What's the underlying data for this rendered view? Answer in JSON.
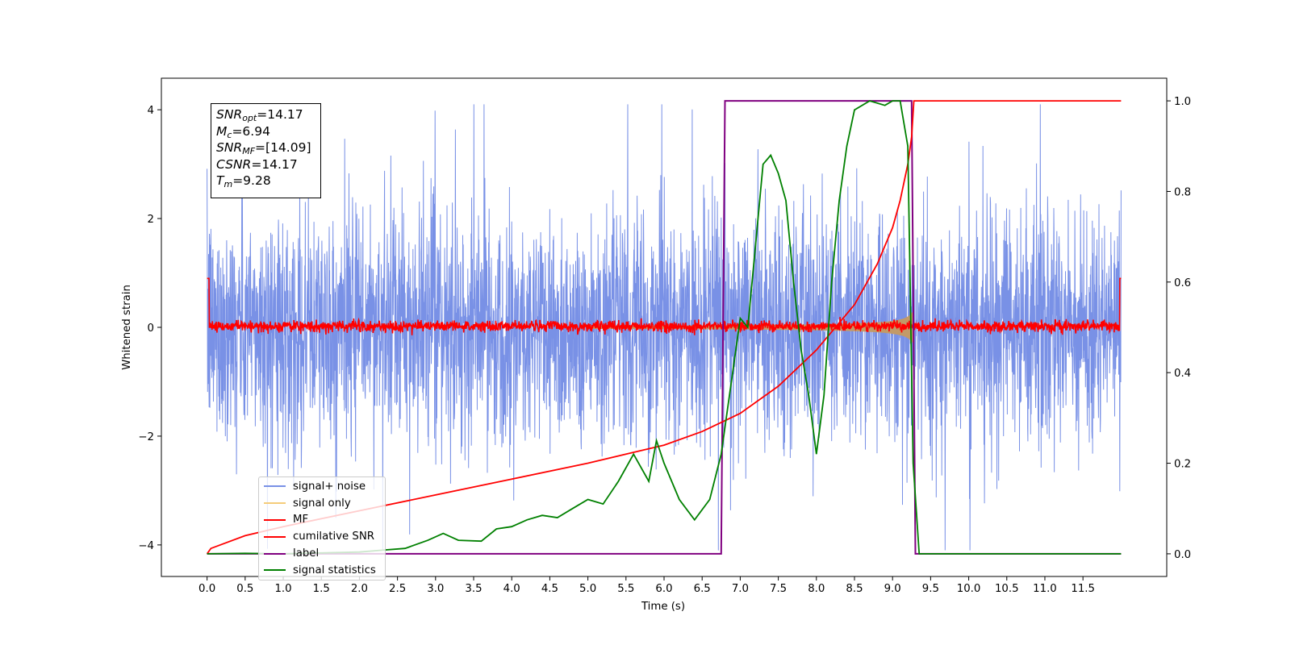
{
  "chart_data": {
    "type": "line",
    "xlabel": "Time (s)",
    "ylabel": "Whitened strain",
    "xlim": [
      -0.6,
      12.6
    ],
    "ylim": [
      -4.58,
      4.58
    ],
    "y2lim": [
      -0.05,
      1.05
    ],
    "x_ticks": [
      "0.0",
      "0.5",
      "1.0",
      "1.5",
      "2.0",
      "2.5",
      "3.0",
      "3.5",
      "4.0",
      "4.5",
      "5.0",
      "5.5",
      "6.0",
      "6.5",
      "7.0",
      "7.5",
      "8.0",
      "8.5",
      "9.0",
      "9.5",
      "10.0",
      "10.5",
      "11.0",
      "11.5"
    ],
    "y_ticks": [
      "4",
      "2",
      "0",
      "−2",
      "−4"
    ],
    "y2_ticks": [
      "1.0",
      "0.8",
      "0.6",
      "0.4",
      "0.2",
      "0.0"
    ],
    "annotation": {
      "snr_opt": {
        "sym": "SNR",
        "sub": "opt",
        "value": "=14.17"
      },
      "mc": {
        "sym": "M",
        "sub": "c",
        "value": "=6.94"
      },
      "snr_mf": {
        "sym": "SNR",
        "sub": "MF",
        "value": "=[14.09]"
      },
      "csnr": {
        "sym": "CSNR",
        "value": "=14.17"
      },
      "tm": {
        "sym": "T",
        "sub": "m",
        "value": "=9.28"
      }
    },
    "legend_position": "lower-left",
    "series": [
      {
        "name": "signal+ noise",
        "color": "#7991e6",
        "axis": "left",
        "description_values": {
          "x_start": 0.0,
          "x_end": 12.0,
          "band": [
            -2.8,
            2.4
          ],
          "peaks": [
            4.1,
            -4.1
          ]
        }
      },
      {
        "name": "signal only",
        "color": "#f5cc7a",
        "axis": "left",
        "description_values": {
          "merger_time": 9.28,
          "peak_amplitude": 1.2
        }
      },
      {
        "name": "MF",
        "color": "#ff0000",
        "axis": "left",
        "description_values": {
          "noise_level": 0.1
        }
      },
      {
        "name": "cumilative SNR",
        "color": "#ff0000",
        "axis": "right",
        "points": [
          [
            0.0,
            0.0
          ],
          [
            0.05,
            0.012
          ],
          [
            0.5,
            0.04
          ],
          [
            1.0,
            0.06
          ],
          [
            2.0,
            0.095
          ],
          [
            3.0,
            0.13
          ],
          [
            4.0,
            0.165
          ],
          [
            5.0,
            0.2
          ],
          [
            5.5,
            0.22
          ],
          [
            6.0,
            0.24
          ],
          [
            6.5,
            0.27
          ],
          [
            7.0,
            0.31
          ],
          [
            7.5,
            0.37
          ],
          [
            8.0,
            0.45
          ],
          [
            8.5,
            0.55
          ],
          [
            8.8,
            0.64
          ],
          [
            9.0,
            0.72
          ],
          [
            9.1,
            0.78
          ],
          [
            9.2,
            0.86
          ],
          [
            9.25,
            0.92
          ],
          [
            9.28,
            1.0
          ],
          [
            12.0,
            1.0
          ]
        ]
      },
      {
        "name": "label",
        "color": "#800080",
        "axis": "right",
        "points": [
          [
            0.0,
            0.0
          ],
          [
            6.75,
            0.0
          ],
          [
            6.8,
            1.0
          ],
          [
            9.25,
            1.0
          ],
          [
            9.3,
            0.0
          ],
          [
            12.0,
            0.0
          ]
        ]
      },
      {
        "name": "signal statistics",
        "color": "#008000",
        "axis": "right",
        "points": [
          [
            0.0,
            0.0
          ],
          [
            0.5,
            0.001
          ],
          [
            1.0,
            0.0
          ],
          [
            1.5,
            0.002
          ],
          [
            2.0,
            0.004
          ],
          [
            2.3,
            0.008
          ],
          [
            2.6,
            0.012
          ],
          [
            2.9,
            0.03
          ],
          [
            3.1,
            0.045
          ],
          [
            3.3,
            0.03
          ],
          [
            3.6,
            0.028
          ],
          [
            3.8,
            0.055
          ],
          [
            4.0,
            0.06
          ],
          [
            4.2,
            0.075
          ],
          [
            4.4,
            0.085
          ],
          [
            4.6,
            0.08
          ],
          [
            4.8,
            0.1
          ],
          [
            5.0,
            0.12
          ],
          [
            5.2,
            0.11
          ],
          [
            5.4,
            0.16
          ],
          [
            5.6,
            0.22
          ],
          [
            5.8,
            0.16
          ],
          [
            5.9,
            0.25
          ],
          [
            6.0,
            0.2
          ],
          [
            6.2,
            0.12
          ],
          [
            6.4,
            0.075
          ],
          [
            6.6,
            0.12
          ],
          [
            6.75,
            0.22
          ],
          [
            6.9,
            0.4
          ],
          [
            7.0,
            0.52
          ],
          [
            7.1,
            0.5
          ],
          [
            7.2,
            0.68
          ],
          [
            7.3,
            0.86
          ],
          [
            7.4,
            0.88
          ],
          [
            7.5,
            0.84
          ],
          [
            7.6,
            0.78
          ],
          [
            7.7,
            0.6
          ],
          [
            7.8,
            0.45
          ],
          [
            7.9,
            0.35
          ],
          [
            8.0,
            0.22
          ],
          [
            8.1,
            0.35
          ],
          [
            8.2,
            0.6
          ],
          [
            8.3,
            0.78
          ],
          [
            8.4,
            0.9
          ],
          [
            8.5,
            0.98
          ],
          [
            8.7,
            1.0
          ],
          [
            8.9,
            0.99
          ],
          [
            9.0,
            1.0
          ],
          [
            9.1,
            1.0
          ],
          [
            9.2,
            0.9
          ],
          [
            9.27,
            0.2
          ],
          [
            9.35,
            0.0
          ],
          [
            12.0,
            0.0
          ]
        ]
      }
    ]
  }
}
